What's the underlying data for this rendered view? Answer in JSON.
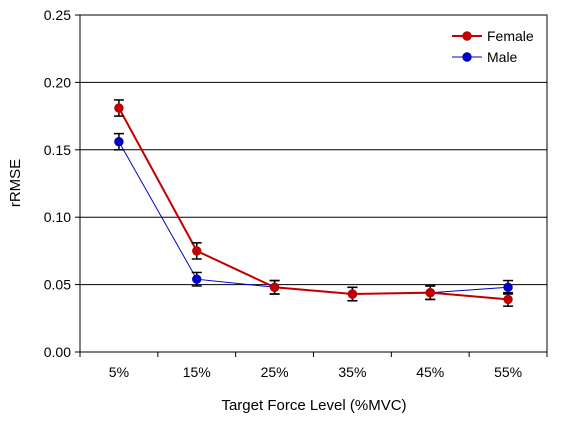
{
  "chart_data": {
    "type": "line",
    "title": "",
    "xlabel": "Target Force Level (%MVC)",
    "ylabel": "rRMSE",
    "categories": [
      "5%",
      "15%",
      "25%",
      "35%",
      "45%",
      "55%"
    ],
    "ylim": [
      0,
      0.25
    ],
    "yticks": [
      "0.00",
      "0.05",
      "0.10",
      "0.15",
      "0.20",
      "0.25"
    ],
    "ytick_values": [
      0,
      0.05,
      0.1,
      0.15,
      0.2,
      0.25
    ],
    "grid": "horizontal",
    "legend_position": "top-right",
    "series": [
      {
        "name": "Female",
        "color": "#c00000",
        "values": [
          0.181,
          0.075,
          0.048,
          0.043,
          0.044,
          0.039
        ],
        "errors": [
          0.006,
          0.006,
          0.005,
          0.005,
          0.005,
          0.005
        ]
      },
      {
        "name": "Male",
        "color": "#0000c8",
        "values": [
          0.156,
          0.054,
          0.048,
          0.043,
          0.044,
          0.048
        ],
        "errors": [
          0.006,
          0.005,
          0.005,
          0.005,
          0.005,
          0.005
        ]
      }
    ]
  }
}
